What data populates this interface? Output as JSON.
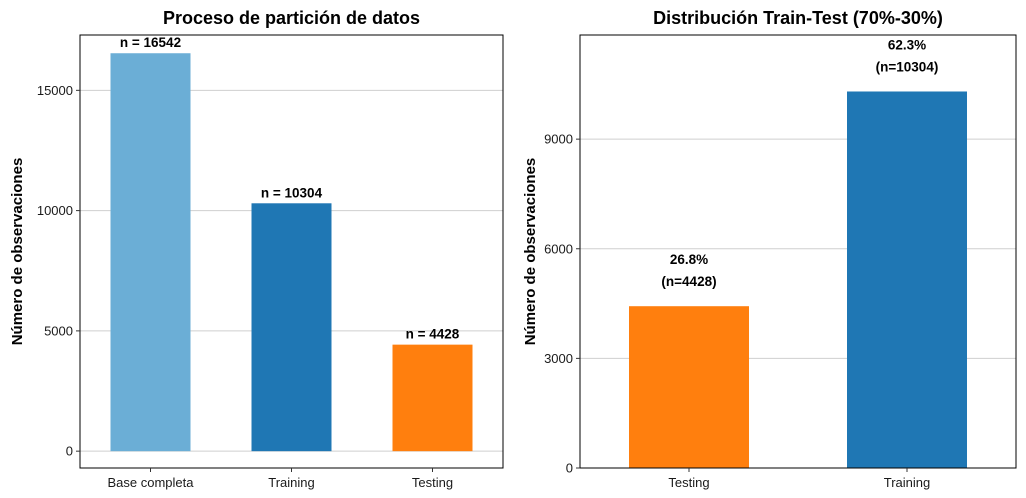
{
  "chart_data": [
    {
      "type": "bar",
      "title": "Proceso de partición de datos",
      "xlabel": "",
      "ylabel": "Número de observaciones",
      "categories": [
        "Base completa",
        "Training",
        "Testing"
      ],
      "values": [
        16542,
        10304,
        4428
      ],
      "labels": [
        [
          "n = 16542"
        ],
        [
          "n = 10304"
        ],
        [
          "n = 4428"
        ]
      ],
      "colors": [
        "#6baed6",
        "#1f77b4",
        "#ff7f0e"
      ],
      "yticks": [
        0,
        5000,
        10000,
        15000
      ],
      "ylim": [
        -700,
        17300
      ],
      "grid": true
    },
    {
      "type": "bar",
      "title": "Distribución Train-Test (70%-30%)",
      "xlabel": "",
      "ylabel": "Número de observaciones",
      "categories": [
        "Testing",
        "Training"
      ],
      "values": [
        4428,
        10304
      ],
      "labels": [
        [
          "26.8%",
          "(n=4428)"
        ],
        [
          "62.3%",
          "(n=10304)"
        ]
      ],
      "colors": [
        "#ff7f0e",
        "#1f77b4"
      ],
      "yticks": [
        0,
        3000,
        6000,
        9000
      ],
      "ylim": [
        0,
        11850
      ],
      "grid": true
    }
  ]
}
